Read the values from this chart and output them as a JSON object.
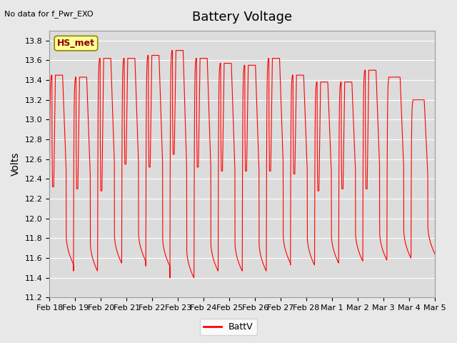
{
  "title": "Battery Voltage",
  "top_left_text": "No data for f_Pwr_EXO",
  "station_label": "HS_met",
  "ylabel": "Volts",
  "legend_label": "BattV",
  "line_color": "#FF0000",
  "background_color": "#E8E8E8",
  "plot_bg_color": "#DCDCDC",
  "ylim": [
    11.2,
    13.9
  ],
  "yticks": [
    11.2,
    11.4,
    11.6,
    11.8,
    12.0,
    12.2,
    12.4,
    12.6,
    12.8,
    13.0,
    13.2,
    13.4,
    13.6,
    13.8
  ],
  "xtick_labels": [
    "Feb 18",
    "Feb 19",
    "Feb 20",
    "Feb 21",
    "Feb 22",
    "Feb 23",
    "Feb 24",
    "Feb 25",
    "Feb 26",
    "Feb 27",
    "Feb 28",
    "Mar 1",
    "Mar 2",
    "Mar 3",
    "Mar 4",
    "Mar 5"
  ],
  "num_days": 16,
  "day_start": 0,
  "cycles_per_day": 1,
  "high_voltage": [
    13.45,
    13.43,
    13.62,
    13.62,
    13.65,
    13.7,
    13.62,
    13.57,
    13.55,
    13.62,
    13.45,
    13.38,
    13.38,
    13.5,
    13.43,
    13.2
  ],
  "low_voltage": [
    11.54,
    11.47,
    11.55,
    11.57,
    11.52,
    11.4,
    11.47,
    11.47,
    11.47,
    11.55,
    11.53,
    11.55,
    11.57,
    11.58,
    11.6,
    11.64
  ],
  "mid_dip": [
    12.32,
    12.3,
    12.28,
    12.55,
    12.52,
    12.65,
    12.52,
    12.48,
    12.48,
    12.48,
    12.45,
    12.28,
    12.3,
    12.3,
    null,
    null
  ]
}
